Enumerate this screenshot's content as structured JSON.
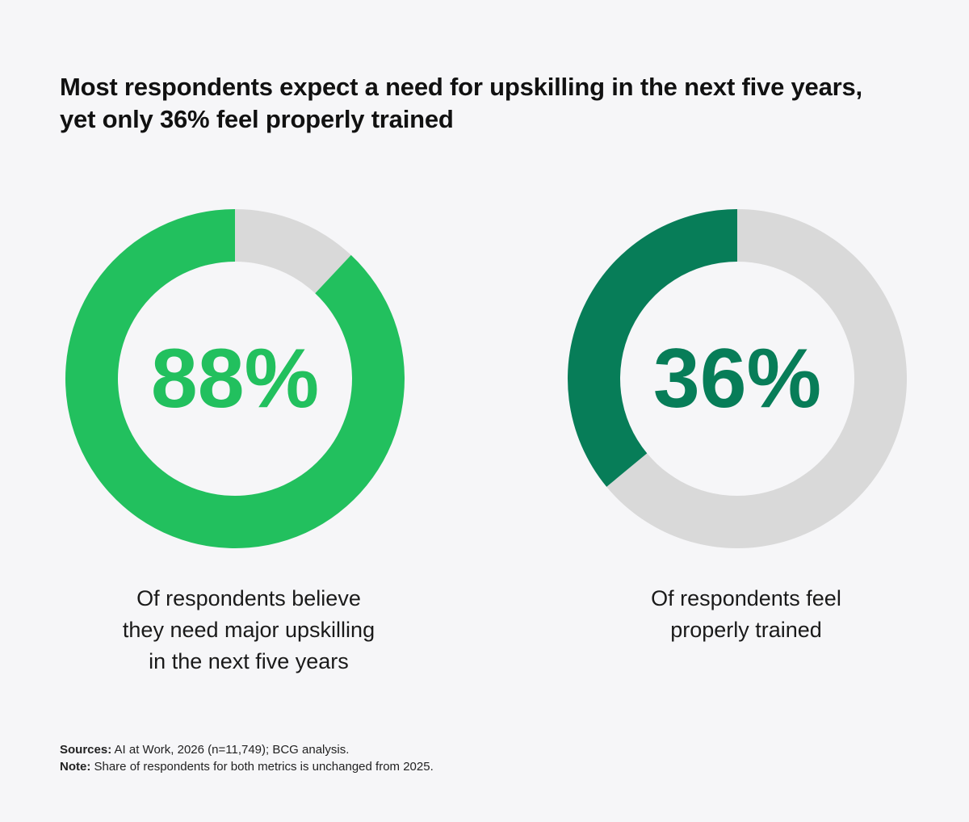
{
  "title": "Most respondents expect a need for upskilling in the next five years, yet only 36% feel properly trained",
  "chart_data": [
    {
      "type": "pie",
      "variant": "donut",
      "values": [
        88,
        12
      ],
      "labels": [
        "Of respondents believe they need major upskilling in the next five years",
        ""
      ],
      "center_label": "88%",
      "colors": [
        "#22c05e",
        "#d9d9d9"
      ],
      "caption": "Of respondents believe they need major upskilling in the next five years"
    },
    {
      "type": "pie",
      "variant": "donut",
      "values": [
        36,
        64
      ],
      "labels": [
        "Of respondents feel properly trained",
        ""
      ],
      "center_label": "36%",
      "colors": [
        "#077d58",
        "#d9d9d9"
      ],
      "caption": "Of respondents feel properly trained"
    }
  ],
  "captions": {
    "left_lines": [
      "Of respondents believe",
      "they need major upskilling",
      "in the next five years"
    ],
    "right_lines": [
      "Of respondents feel",
      "properly trained"
    ]
  },
  "footnotes": {
    "sources_label": "Sources:",
    "sources_text": " AI at Work, 2026 (n=11,749); BCG analysis.",
    "note_label": "Note:",
    "note_text": " Share of respondents for both metrics is unchanged from 2025."
  },
  "colors": {
    "background": "#f6f6f8",
    "track": "#d9d9d9",
    "left_accent": "#22c05e",
    "right_accent": "#077d58"
  }
}
